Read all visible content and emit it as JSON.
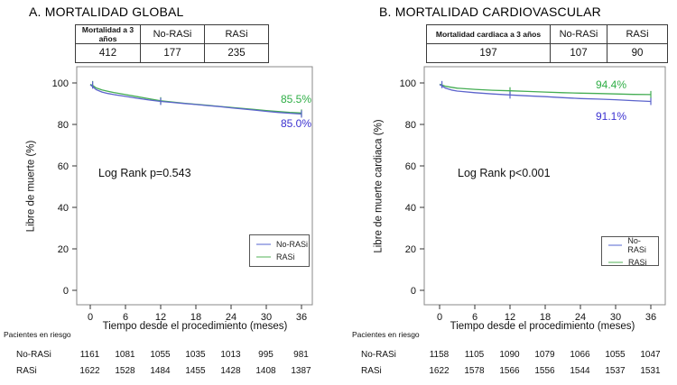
{
  "colors": {
    "rasi": "#44ad53",
    "no_rasi": "#5c64cc",
    "rasi_label": "#2fae46",
    "no_rasi_label": "#3b31d0",
    "legend_rasi": "#a9d9ab",
    "legend_no_rasi": "#aab2e8",
    "box": "#888888",
    "tick": "#333333"
  },
  "panels": [
    {
      "title": "A. MORTALIDAD GLOBAL",
      "summary": {
        "headers": [
          "Mortalidad a 3 años",
          "No-RASi",
          "RASi"
        ],
        "values": [
          "412",
          "177",
          "235"
        ]
      },
      "ylabel": "Libre de muerte (%)",
      "xlabel": "Tiempo desde el procedimiento (meses)",
      "log_rank": "Log Rank p=0.543",
      "end_labels": {
        "rasi": "85.5%",
        "no_rasi": "85.0%"
      },
      "legend": [
        "No-RASi",
        "RASi"
      ],
      "risk_table": {
        "caption": "Pacientes en riesgo",
        "rows": [
          {
            "label": "No-RASi",
            "values": [
              1161,
              1081,
              1055,
              1035,
              1013,
              995,
              981
            ]
          },
          {
            "label": "RASi",
            "values": [
              1622,
              1528,
              1484,
              1455,
              1428,
              1408,
              1387
            ]
          }
        ]
      }
    },
    {
      "title": "B. MORTALIDAD CARDIOVASCULAR",
      "summary": {
        "headers": [
          "Mortalidad cardiaca  a 3 años",
          "No-RASi",
          "RASi"
        ],
        "values": [
          "197",
          "107",
          "90"
        ]
      },
      "ylabel": "Libre de muerte cardiaca (%)",
      "xlabel": "Tiempo desde el procedimiento (meses)",
      "log_rank": "Log Rank p<0.001",
      "end_labels": {
        "rasi": "94.4%",
        "no_rasi": "91.1%"
      },
      "legend": [
        "No-RASi",
        "RASi"
      ],
      "risk_table": {
        "caption": "Pacientes en riesgo",
        "rows": [
          {
            "label": "No-RASi",
            "values": [
              1158,
              1105,
              1090,
              1079,
              1066,
              1055,
              1047
            ]
          },
          {
            "label": "RASi",
            "values": [
              1622,
              1578,
              1566,
              1556,
              1544,
              1537,
              1531
            ]
          }
        ]
      }
    }
  ],
  "chart_data": [
    {
      "type": "line",
      "title": "A. MORTALIDAD GLOBAL",
      "xlabel": "Tiempo desde el procedimiento (meses)",
      "ylabel": "Libre de muerte (%)",
      "xlim": [
        0,
        36
      ],
      "ylim": [
        0,
        100
      ],
      "xticks": [
        0,
        6,
        12,
        18,
        24,
        30,
        36
      ],
      "yticks": [
        0,
        20,
        40,
        60,
        80,
        100
      ],
      "grid": false,
      "legend_position": "lower-right",
      "annotations": [
        "Log Rank p=0.543",
        "85.5%",
        "85.0%"
      ],
      "series": [
        {
          "name": "RASi",
          "color_key": "rasi",
          "end_value_pct": 85.5,
          "points": [
            [
              0,
              99.3
            ],
            [
              0.5,
              98.6
            ],
            [
              1,
              97.6
            ],
            [
              2,
              96.6
            ],
            [
              3,
              96.0
            ],
            [
              4,
              95.4
            ],
            [
              6,
              94.4
            ],
            [
              8,
              93.4
            ],
            [
              10,
              92.4
            ],
            [
              12,
              91.4
            ],
            [
              14,
              90.8
            ],
            [
              16,
              90.2
            ],
            [
              18,
              89.7
            ],
            [
              20,
              89.2
            ],
            [
              22,
              88.7
            ],
            [
              24,
              88.2
            ],
            [
              26,
              87.7
            ],
            [
              28,
              87.2
            ],
            [
              30,
              86.7
            ],
            [
              32,
              86.2
            ],
            [
              34,
              85.8
            ],
            [
              36,
              85.5
            ]
          ]
        },
        {
          "name": "No-RASi",
          "color_key": "no_rasi",
          "end_value_pct": 85.0,
          "points": [
            [
              0,
              99.1
            ],
            [
              0.5,
              98.0
            ],
            [
              1,
              96.8
            ],
            [
              2,
              95.6
            ],
            [
              3,
              94.9
            ],
            [
              4,
              94.4
            ],
            [
              6,
              93.5
            ],
            [
              8,
              92.6
            ],
            [
              10,
              91.8
            ],
            [
              12,
              91.1
            ],
            [
              14,
              90.6
            ],
            [
              16,
              90.1
            ],
            [
              18,
              89.6
            ],
            [
              20,
              89.1
            ],
            [
              22,
              88.6
            ],
            [
              24,
              88.0
            ],
            [
              26,
              87.5
            ],
            [
              28,
              86.9
            ],
            [
              30,
              86.3
            ],
            [
              32,
              85.8
            ],
            [
              34,
              85.4
            ],
            [
              36,
              85.0
            ]
          ]
        }
      ],
      "censors": [
        {
          "x": 0.4,
          "y": 99.2,
          "color_key": "rasi"
        },
        {
          "x": 0.4,
          "y": 99.0,
          "color_key": "no_rasi"
        },
        {
          "x": 12,
          "y": 91.4,
          "color_key": "rasi"
        },
        {
          "x": 12,
          "y": 91.1,
          "color_key": "no_rasi"
        },
        {
          "x": 36,
          "y": 85.5,
          "color_key": "rasi"
        },
        {
          "x": 36,
          "y": 85.0,
          "color_key": "no_rasi"
        }
      ]
    },
    {
      "type": "line",
      "title": "B. MORTALIDAD CARDIOVASCULAR",
      "xlabel": "Tiempo desde el procedimiento (meses)",
      "ylabel": "Libre de muerte cardiaca (%)",
      "xlim": [
        0,
        36
      ],
      "ylim": [
        0,
        100
      ],
      "xticks": [
        0,
        6,
        12,
        18,
        24,
        30,
        36
      ],
      "yticks": [
        0,
        20,
        40,
        60,
        80,
        100
      ],
      "grid": false,
      "legend_position": "lower-right",
      "annotations": [
        "Log Rank p<0.001",
        "94.4%",
        "91.1%"
      ],
      "series": [
        {
          "name": "RASi",
          "color_key": "rasi",
          "end_value_pct": 94.4,
          "points": [
            [
              0,
              99.4
            ],
            [
              0.5,
              98.9
            ],
            [
              1,
              98.4
            ],
            [
              2,
              97.9
            ],
            [
              3,
              97.5
            ],
            [
              6,
              96.9
            ],
            [
              9,
              96.5
            ],
            [
              12,
              96.2
            ],
            [
              15,
              95.9
            ],
            [
              18,
              95.6
            ],
            [
              21,
              95.3
            ],
            [
              24,
              95.1
            ],
            [
              27,
              94.9
            ],
            [
              30,
              94.7
            ],
            [
              33,
              94.5
            ],
            [
              36,
              94.4
            ]
          ]
        },
        {
          "name": "No-RASi",
          "color_key": "no_rasi",
          "end_value_pct": 91.1,
          "points": [
            [
              0,
              99.2
            ],
            [
              0.5,
              98.4
            ],
            [
              1,
              97.5
            ],
            [
              2,
              96.6
            ],
            [
              3,
              96.1
            ],
            [
              6,
              95.3
            ],
            [
              9,
              94.7
            ],
            [
              12,
              94.2
            ],
            [
              15,
              93.8
            ],
            [
              18,
              93.4
            ],
            [
              21,
              92.9
            ],
            [
              24,
              92.5
            ],
            [
              27,
              92.2
            ],
            [
              30,
              91.9
            ],
            [
              33,
              91.5
            ],
            [
              36,
              91.1
            ]
          ]
        }
      ],
      "censors": [
        {
          "x": 0.4,
          "y": 99.2,
          "color_key": "no_rasi"
        },
        {
          "x": 12,
          "y": 96.2,
          "color_key": "rasi"
        },
        {
          "x": 12,
          "y": 94.2,
          "color_key": "no_rasi"
        },
        {
          "x": 36,
          "y": 94.4,
          "color_key": "rasi"
        },
        {
          "x": 36,
          "y": 91.1,
          "color_key": "no_rasi"
        }
      ]
    }
  ]
}
